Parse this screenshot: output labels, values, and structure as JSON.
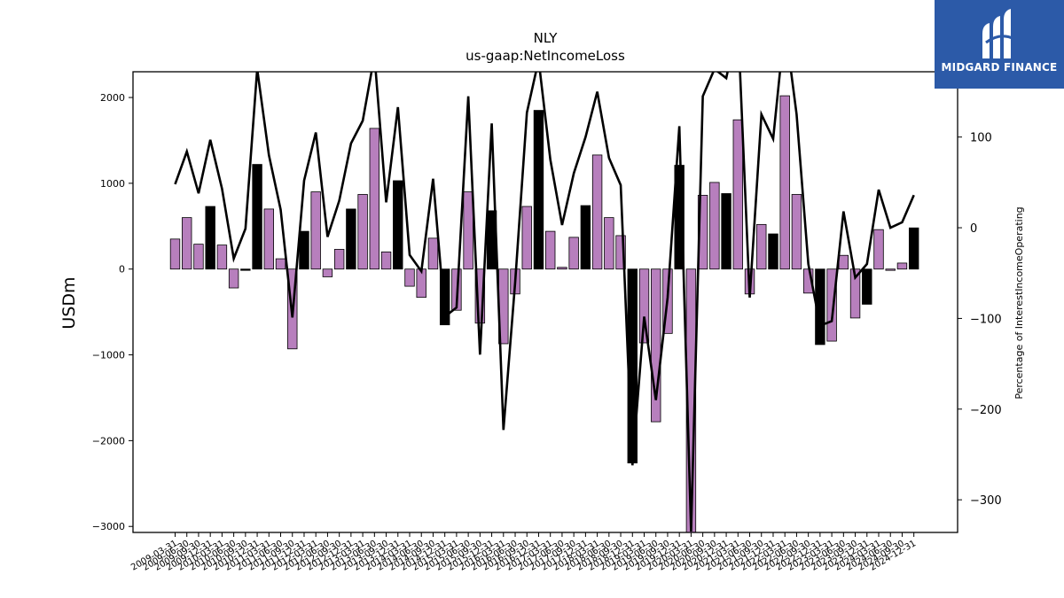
{
  "chart_data": {
    "type": "bar",
    "title": "NLY",
    "subtitle": "us-gaap:NetIncomeLoss",
    "ylabel": "USDm",
    "y2label": "Percentage of InterestIncomeOperating",
    "ylim": [
      -3070,
      2300
    ],
    "y2lim": [
      -336,
      172
    ],
    "yticks": [
      -3000,
      -2000,
      -1000,
      0,
      1000,
      2000
    ],
    "y2ticks": [
      -300,
      -200,
      -100,
      0,
      100
    ],
    "colors": {
      "positive_qoq": "#b77fbd",
      "negative_qoq": "#000000",
      "line": "#000000"
    },
    "categories": [
      "2009-03-31",
      "2009-06-30",
      "2009-09-30",
      "2009-12-31",
      "2010-03-31",
      "2010-06-30",
      "2010-09-30",
      "2010-12-31",
      "2011-03-31",
      "2011-06-30",
      "2011-09-30",
      "2011-12-31",
      "2012-03-31",
      "2012-06-30",
      "2012-09-30",
      "2012-12-31",
      "2013-03-31",
      "2013-06-30",
      "2013-09-30",
      "2013-12-31",
      "2014-03-31",
      "2014-06-30",
      "2014-09-30",
      "2014-12-31",
      "2015-03-31",
      "2015-06-30",
      "2015-09-30",
      "2015-12-31",
      "2016-03-31",
      "2016-06-30",
      "2016-09-30",
      "2016-12-31",
      "2017-03-31",
      "2017-06-30",
      "2017-09-30",
      "2017-12-31",
      "2018-03-31",
      "2018-06-30",
      "2018-09-30",
      "2018-12-31",
      "2019-03-31",
      "2019-06-30",
      "2019-09-30",
      "2019-12-31",
      "2020-03-31",
      "2020-06-30",
      "2020-09-30",
      "2020-12-31",
      "2021-03-31",
      "2021-06-30",
      "2021-09-30",
      "2021-12-31",
      "2022-03-31",
      "2022-06-30",
      "2022-09-30",
      "2022-12-31",
      "2023-03-31",
      "2023-06-30",
      "2023-09-30",
      "2023-12-31",
      "2024-03-31",
      "2024-06-30",
      "2024-09-30",
      "2024-12-31"
    ],
    "series": [
      {
        "type": "bar",
        "values": [
          350,
          600,
          290,
          730,
          280,
          -220,
          -15,
          1220,
          700,
          120,
          -930,
          440,
          900,
          -90,
          230,
          700,
          870,
          1640,
          200,
          1030,
          -200,
          -330,
          360,
          -650,
          -480,
          900,
          -630,
          680,
          -870,
          -290,
          730,
          1850,
          440,
          20,
          370,
          740,
          1330,
          600,
          390,
          -2260,
          -860,
          -1780,
          -750,
          1210,
          -3070,
          860,
          1010,
          880,
          1740,
          -290,
          520,
          410,
          2020,
          870,
          -280,
          -880,
          -840,
          160,
          -570,
          -410,
          460,
          -15,
          70,
          480
        ],
        "bar_colors": [
          "p",
          "p",
          "p",
          "k",
          "p",
          "p",
          "k",
          "k",
          "p",
          "p",
          "p",
          "k",
          "p",
          "p",
          "p",
          "k",
          "p",
          "p",
          "p",
          "k",
          "p",
          "p",
          "p",
          "k",
          "p",
          "p",
          "p",
          "k",
          "p",
          "p",
          "p",
          "k",
          "p",
          "p",
          "p",
          "k",
          "p",
          "p",
          "p",
          "k",
          "p",
          "p",
          "p",
          "k",
          "p",
          "p",
          "p",
          "k",
          "p",
          "p",
          "p",
          "k",
          "p",
          "p",
          "p",
          "k",
          "p",
          "p",
          "p",
          "k",
          "p",
          "p",
          "p",
          "k"
        ]
      },
      {
        "type": "line",
        "axis": "right",
        "values": [
          48,
          84,
          38,
          97,
          43,
          -34,
          -1,
          175,
          80,
          20,
          -99,
          52,
          105,
          -10,
          30,
          93,
          118,
          190,
          28,
          133,
          -30,
          -48,
          54,
          -98,
          -88,
          145,
          -140,
          115,
          -223,
          -60,
          127,
          185,
          75,
          3,
          60,
          100,
          150,
          77,
          47,
          -262,
          -98,
          -190,
          -77,
          112,
          -335,
          145,
          175,
          165,
          225,
          -77,
          125,
          98,
          225,
          125,
          -40,
          -108,
          -103,
          18,
          -55,
          -40,
          42,
          0,
          6,
          36
        ]
      }
    ]
  },
  "logo": {
    "text": "MIDGARD FINANCE"
  }
}
